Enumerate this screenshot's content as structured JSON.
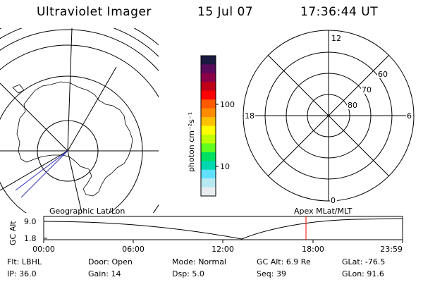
{
  "header": {
    "title": "Ultraviolet Imager",
    "date": "15 Jul 07",
    "time": "17:36:44 UT"
  },
  "colorbar": {
    "unit": "photon cm⁻²s⁻¹",
    "ticks": [
      "100",
      "10"
    ],
    "colors": [
      "#1a1a40",
      "#5a0a5a",
      "#8b0048",
      "#c00018",
      "#ff0000",
      "#ff5a00",
      "#ff8c00",
      "#ffc000",
      "#ffff00",
      "#c0ff00",
      "#60ff20",
      "#00e060",
      "#00d8b0",
      "#60e0ff",
      "#b8e8f0",
      "#e8eef0"
    ]
  },
  "left_map": {
    "label": "Geographic Lat/Lon"
  },
  "right_map": {
    "label": "Apex MLat/MLT",
    "mlt_labels": {
      "top": "12",
      "left": "18",
      "right": "6",
      "bottom": "0"
    },
    "lat_labels": [
      "60",
      "70",
      "80"
    ]
  },
  "strip": {
    "ylabel": "GC Alt",
    "y_ticks": [
      "9.0",
      "1.8"
    ],
    "x_ticks": [
      "00:00",
      "06:00",
      "12:00",
      "18:00",
      "23:59"
    ],
    "marker_color": "#ff0000",
    "chart_data": {
      "type": "line",
      "ylabel": "GC Alt",
      "ylim": [
        1.8,
        9.0
      ],
      "x_range": [
        "00:00",
        "23:59"
      ],
      "marker_time": "17:36:44"
    }
  },
  "info": {
    "row1": [
      {
        "label": "Flt:",
        "value": "LBHL"
      },
      {
        "label": "Door:",
        "value": "Open"
      },
      {
        "label": "Mode:",
        "value": "Normal"
      },
      {
        "label": "GC Alt:",
        "value": "6.9 Re"
      },
      {
        "label": "GLat:",
        "value": "-76.5"
      }
    ],
    "row2": [
      {
        "label": "IP:",
        "value": "36.0"
      },
      {
        "label": "Gain:",
        "value": "14"
      },
      {
        "label": "Dsp:",
        "value": "5.0"
      },
      {
        "label": "Seq:",
        "value": "39"
      },
      {
        "label": "GLon:",
        "value": "91.6"
      }
    ]
  }
}
